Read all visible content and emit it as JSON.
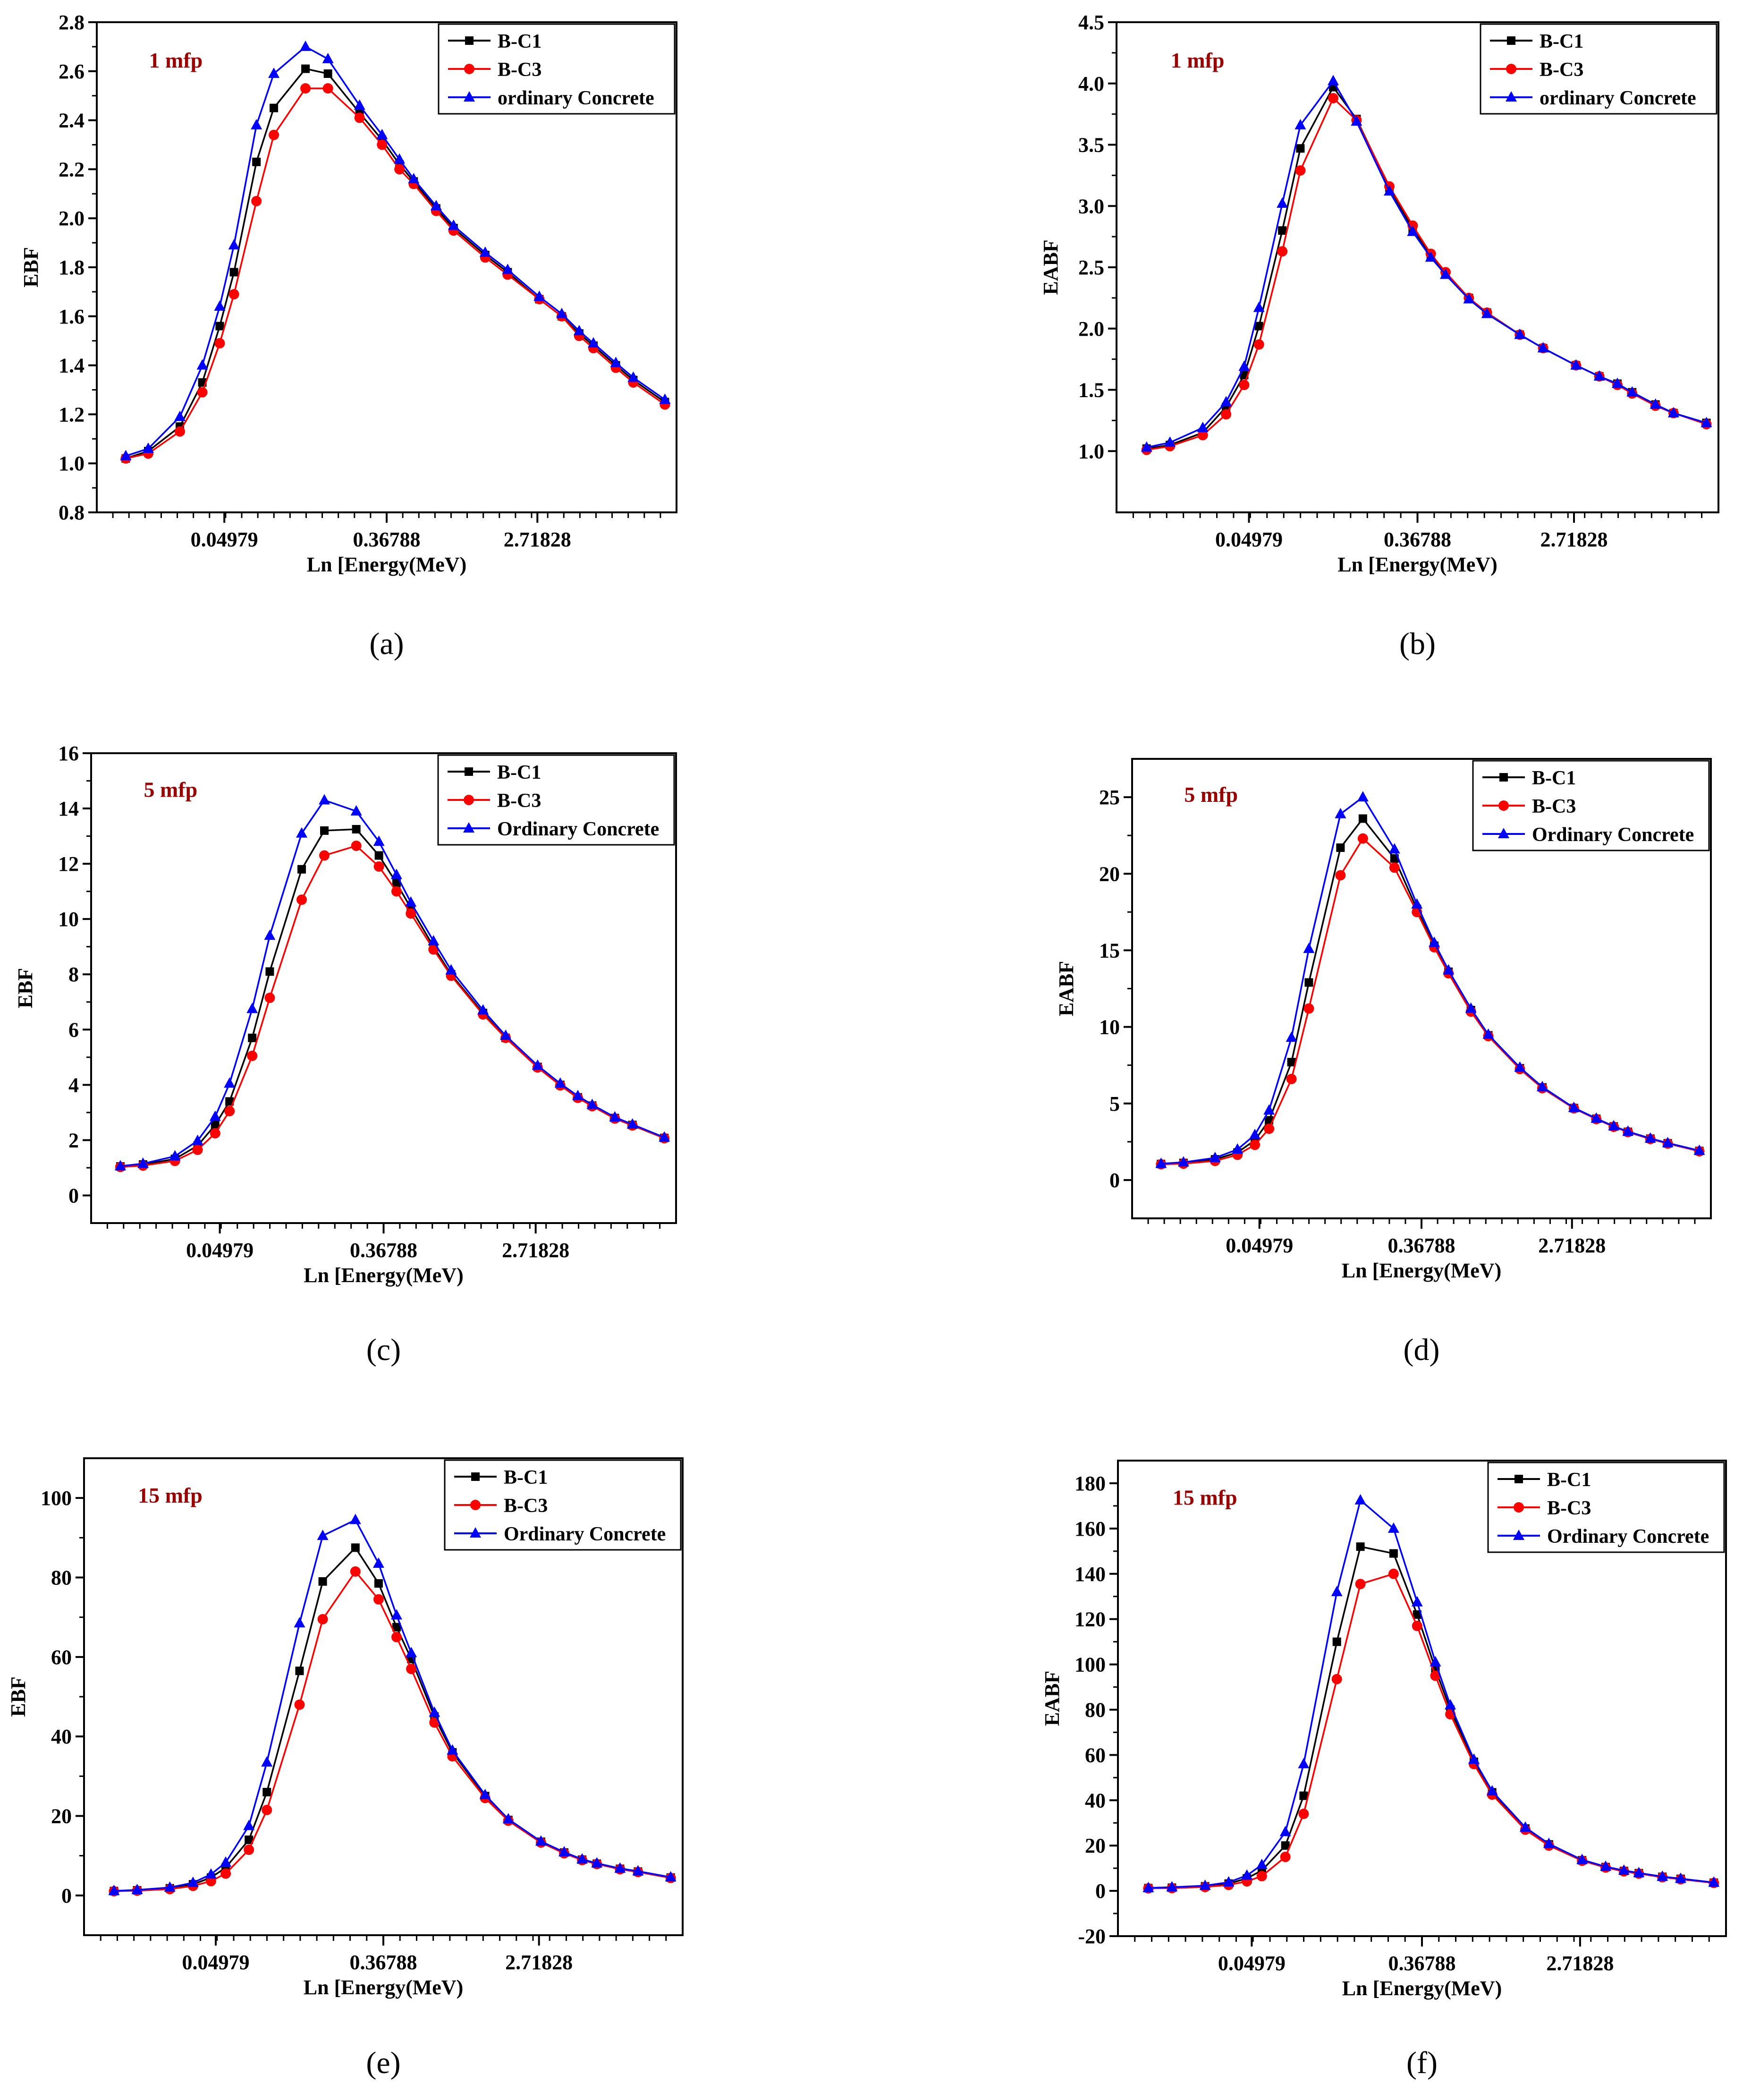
{
  "colors": {
    "B-C1": "#000000",
    "B-C3": "#ff0000",
    "concrete": "#0000ff",
    "annotation": "#990000"
  },
  "x_tick_labels": [
    "0.04979",
    "0.36788",
    "2.71828"
  ],
  "x_label": "Ln [Energy(MeV)",
  "chart_data": [
    {
      "type": "line",
      "panel_label": "(a)",
      "annotation": "1 mfp",
      "ylabel": "EBF",
      "xlabel": "Ln [Energy(MeV)",
      "ylim": [
        0.8,
        2.8
      ],
      "yticks": [
        "0.8",
        "1.0",
        "1.2",
        "1.4",
        "1.6",
        "1.8",
        "2.0",
        "2.2",
        "2.4",
        "2.6",
        "2.8"
      ],
      "legend": [
        "B-C1",
        "B-C3",
        "ordinary Concrete"
      ],
      "x": [
        0.015,
        0.02,
        0.03,
        0.04,
        0.05,
        0.06,
        0.08,
        0.1,
        0.15,
        0.2,
        0.3,
        0.4,
        0.5,
        0.6,
        0.8,
        1,
        1.5,
        2,
        3,
        4,
        5,
        6,
        8,
        10,
        15
      ],
      "series": [
        {
          "name": "B-C1",
          "values": [
            1.02,
            1.05,
            1.15,
            1.33,
            1.56,
            1.78,
            2.23,
            2.45,
            2.61,
            2.59,
            2.43,
            2.32,
            2.22,
            2.15,
            2.04,
            1.96,
            1.85,
            1.78,
            1.67,
            1.6,
            1.53,
            1.48,
            1.4,
            1.34,
            1.25
          ]
        },
        {
          "name": "B-C3",
          "values": [
            1.02,
            1.04,
            1.13,
            1.29,
            1.49,
            1.69,
            2.07,
            2.34,
            2.53,
            2.53,
            2.41,
            2.3,
            2.2,
            2.14,
            2.03,
            1.95,
            1.84,
            1.77,
            1.67,
            1.6,
            1.52,
            1.47,
            1.39,
            1.33,
            1.24
          ]
        },
        {
          "name": "ordinary Concrete",
          "values": [
            1.03,
            1.06,
            1.19,
            1.4,
            1.64,
            1.89,
            2.38,
            2.59,
            2.7,
            2.65,
            2.46,
            2.34,
            2.24,
            2.16,
            2.05,
            1.97,
            1.86,
            1.79,
            1.68,
            1.61,
            1.54,
            1.49,
            1.41,
            1.35,
            1.26
          ]
        }
      ]
    },
    {
      "type": "line",
      "panel_label": "(b)",
      "annotation": "1 mfp",
      "ylabel": "EABF",
      "xlabel": "Ln [Energy(MeV)",
      "ylim": [
        0.5,
        4.5
      ],
      "yticks": [
        "1.0",
        "1.5",
        "2.0",
        "2.5",
        "3.0",
        "3.5",
        "4.0",
        "4.5"
      ],
      "legend": [
        "B-C1",
        "B-C3",
        "ordinary Concrete"
      ],
      "x": [
        0.015,
        0.02,
        0.03,
        0.04,
        0.05,
        0.06,
        0.08,
        0.1,
        0.15,
        0.2,
        0.3,
        0.4,
        0.5,
        0.6,
        0.8,
        1,
        1.5,
        2,
        3,
        4,
        5,
        6,
        8,
        10,
        15
      ],
      "series": [
        {
          "name": "B-C1",
          "values": [
            1.02,
            1.05,
            1.15,
            1.36,
            1.62,
            2.02,
            2.8,
            3.47,
            3.97,
            3.71,
            3.15,
            2.81,
            2.6,
            2.45,
            2.25,
            2.13,
            1.95,
            1.84,
            1.7,
            1.61,
            1.55,
            1.48,
            1.38,
            1.31,
            1.23
          ]
        },
        {
          "name": "B-C3",
          "values": [
            1.01,
            1.04,
            1.13,
            1.3,
            1.54,
            1.87,
            2.63,
            3.29,
            3.88,
            3.7,
            3.16,
            2.84,
            2.61,
            2.46,
            2.25,
            2.13,
            1.95,
            1.84,
            1.7,
            1.61,
            1.54,
            1.47,
            1.37,
            1.31,
            1.22
          ]
        },
        {
          "name": "ordinary Concrete",
          "values": [
            1.03,
            1.07,
            1.19,
            1.4,
            1.69,
            2.17,
            3.02,
            3.66,
            4.02,
            3.69,
            3.12,
            2.79,
            2.58,
            2.44,
            2.24,
            2.12,
            1.95,
            1.84,
            1.7,
            1.61,
            1.55,
            1.48,
            1.38,
            1.31,
            1.23
          ]
        }
      ]
    },
    {
      "type": "line",
      "panel_label": "(c)",
      "annotation": "5 mfp",
      "ylabel": "EBF",
      "xlabel": "Ln [Energy(MeV)",
      "ylim": [
        -1,
        16
      ],
      "yticks": [
        "0",
        "2",
        "4",
        "6",
        "8",
        "10",
        "12",
        "14",
        "16"
      ],
      "legend": [
        "B-C1",
        "B-C3",
        "Ordinary Concrete"
      ],
      "x": [
        0.015,
        0.02,
        0.03,
        0.04,
        0.05,
        0.06,
        0.08,
        0.1,
        0.15,
        0.2,
        0.3,
        0.4,
        0.5,
        0.6,
        0.8,
        1,
        1.5,
        2,
        3,
        4,
        5,
        6,
        8,
        10,
        15
      ],
      "series": [
        {
          "name": "B-C1",
          "values": [
            1.05,
            1.12,
            1.32,
            1.8,
            2.55,
            3.4,
            5.7,
            8.1,
            11.8,
            13.2,
            13.25,
            12.3,
            11.3,
            10.4,
            9.0,
            8.0,
            6.6,
            5.7,
            4.65,
            4.0,
            3.55,
            3.25,
            2.8,
            2.55,
            2.08
          ]
        },
        {
          "name": "B-C3",
          "values": [
            1.03,
            1.08,
            1.25,
            1.65,
            2.25,
            3.05,
            5.05,
            7.15,
            10.7,
            12.3,
            12.65,
            11.9,
            11.0,
            10.2,
            8.9,
            7.95,
            6.55,
            5.7,
            4.63,
            3.98,
            3.53,
            3.23,
            2.78,
            2.53,
            2.07
          ]
        },
        {
          "name": "Ordinary Concrete",
          "values": [
            1.06,
            1.15,
            1.42,
            1.98,
            2.85,
            4.05,
            6.75,
            9.4,
            13.1,
            14.3,
            13.9,
            12.8,
            11.6,
            10.6,
            9.2,
            8.15,
            6.7,
            5.78,
            4.7,
            4.05,
            3.6,
            3.28,
            2.83,
            2.57,
            2.1
          ]
        }
      ]
    },
    {
      "type": "line",
      "panel_label": "(d)",
      "annotation": "5 mfp",
      "ylabel": "EABF",
      "xlabel": "Ln [Energy(MeV)",
      "ylim": [
        -2.5,
        27.5
      ],
      "yticks": [
        "0",
        "5",
        "10",
        "15",
        "20",
        "25"
      ],
      "legend": [
        "B-C1",
        "B-C3",
        "Ordinary Concrete"
      ],
      "x": [
        0.015,
        0.02,
        0.03,
        0.04,
        0.05,
        0.06,
        0.08,
        0.1,
        0.15,
        0.2,
        0.3,
        0.4,
        0.5,
        0.6,
        0.8,
        1,
        1.5,
        2,
        3,
        4,
        5,
        6,
        8,
        10,
        15
      ],
      "series": [
        {
          "name": "B-C1",
          "values": [
            1.05,
            1.12,
            1.35,
            1.8,
            2.6,
            3.9,
            7.7,
            12.9,
            21.7,
            23.6,
            21.0,
            17.7,
            15.3,
            13.6,
            11.1,
            9.45,
            7.3,
            6.05,
            4.7,
            4.0,
            3.5,
            3.15,
            2.7,
            2.4,
            1.9
          ]
        },
        {
          "name": "B-C3",
          "values": [
            1.03,
            1.07,
            1.25,
            1.65,
            2.3,
            3.35,
            6.6,
            11.2,
            19.9,
            22.3,
            20.4,
            17.5,
            15.2,
            13.5,
            11.0,
            9.4,
            7.25,
            6.0,
            4.68,
            3.98,
            3.48,
            3.13,
            2.68,
            2.38,
            1.88
          ]
        },
        {
          "name": "Ordinary Concrete",
          "values": [
            1.07,
            1.16,
            1.45,
            2.0,
            2.95,
            4.55,
            9.3,
            15.1,
            23.9,
            25.0,
            21.6,
            18.0,
            15.5,
            13.7,
            11.2,
            9.5,
            7.35,
            6.08,
            4.72,
            4.02,
            3.52,
            3.17,
            2.72,
            2.42,
            1.92
          ]
        }
      ]
    },
    {
      "type": "line",
      "panel_label": "(e)",
      "annotation": "15 mfp",
      "ylabel": "EBF",
      "xlabel": "Ln [Energy(MeV)",
      "ylim": [
        -10,
        110
      ],
      "yticks": [
        "0",
        "20",
        "40",
        "60",
        "80",
        "100"
      ],
      "legend": [
        "B-C1",
        "B-C3",
        "Ordinary Concrete"
      ],
      "x": [
        0.015,
        0.02,
        0.03,
        0.04,
        0.05,
        0.06,
        0.08,
        0.1,
        0.15,
        0.2,
        0.3,
        0.4,
        0.5,
        0.6,
        0.8,
        1,
        1.5,
        2,
        3,
        4,
        5,
        6,
        8,
        10,
        15
      ],
      "series": [
        {
          "name": "B-C1",
          "values": [
            1.1,
            1.3,
            1.8,
            2.8,
            4.5,
            7.0,
            14.0,
            26.0,
            56.5,
            79.0,
            87.5,
            78.5,
            67.5,
            59.5,
            45.0,
            36.0,
            25.0,
            19.0,
            13.5,
            10.8,
            9.0,
            8.0,
            6.7,
            6.0,
            4.5
          ]
        },
        {
          "name": "B-C3",
          "values": [
            1.05,
            1.2,
            1.6,
            2.4,
            3.6,
            5.5,
            11.5,
            21.5,
            48.0,
            69.5,
            81.5,
            74.5,
            65.0,
            57.0,
            43.5,
            35.0,
            24.5,
            18.8,
            13.3,
            10.6,
            8.9,
            7.9,
            6.6,
            5.9,
            4.4
          ]
        },
        {
          "name": "Ordinary Concrete",
          "values": [
            1.15,
            1.4,
            2.0,
            3.2,
            5.3,
            8.3,
            17.5,
            33.5,
            68.5,
            90.5,
            94.5,
            83.5,
            70.5,
            61.0,
            46.0,
            36.5,
            25.3,
            19.2,
            13.6,
            10.9,
            9.1,
            8.1,
            6.8,
            6.1,
            4.6
          ]
        }
      ]
    },
    {
      "type": "line",
      "panel_label": "(f)",
      "annotation": "15 mfp",
      "ylabel": "EABF",
      "xlabel": "Ln [Energy(MeV)",
      "ylim": [
        -20,
        190
      ],
      "yticks": [
        "-20",
        "0",
        "20",
        "40",
        "60",
        "80",
        "100",
        "120",
        "140",
        "160",
        "180"
      ],
      "legend": [
        "B-C1",
        "B-C3",
        "Ordinary Concrete"
      ],
      "x": [
        0.015,
        0.02,
        0.03,
        0.04,
        0.05,
        0.06,
        0.08,
        0.1,
        0.15,
        0.2,
        0.3,
        0.4,
        0.5,
        0.6,
        0.8,
        1,
        1.5,
        2,
        3,
        4,
        5,
        6,
        8,
        10,
        15
      ],
      "series": [
        {
          "name": "B-C1",
          "values": [
            1.2,
            1.4,
            2.0,
            3.2,
            5.5,
            9.0,
            20.0,
            42.0,
            110.0,
            152.0,
            149.0,
            122.0,
            98.0,
            80.0,
            57.0,
            43.5,
            27.5,
            20.5,
            13.5,
            10.5,
            8.8,
            7.8,
            6.2,
            5.3,
            3.6
          ]
        },
        {
          "name": "B-C3",
          "values": [
            1.1,
            1.2,
            1.7,
            2.6,
            4.2,
            6.5,
            15.0,
            34.0,
            93.5,
            135.5,
            140.0,
            117.0,
            95.0,
            78.0,
            56.0,
            42.5,
            27.0,
            20.0,
            13.3,
            10.3,
            8.6,
            7.6,
            6.0,
            5.1,
            3.5
          ]
        },
        {
          "name": "Ordinary Concrete",
          "values": [
            1.3,
            1.6,
            2.3,
            3.8,
            6.8,
            11.5,
            26.0,
            56.0,
            132.0,
            172.5,
            160.0,
            127.5,
            101.0,
            82.0,
            58.0,
            44.0,
            28.0,
            20.8,
            13.7,
            10.7,
            9.0,
            7.9,
            6.3,
            5.4,
            3.7
          ]
        }
      ]
    }
  ]
}
